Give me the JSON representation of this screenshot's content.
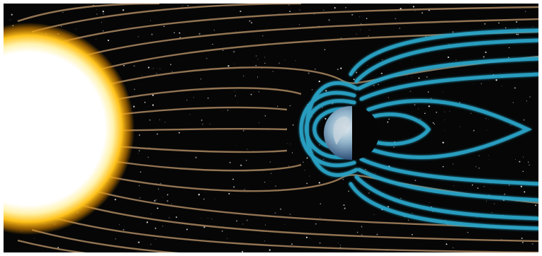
{
  "image": {
    "subject": "sun-earth-magnetosphere",
    "colors": {
      "space": "#060606",
      "sun_core": "#ffffff",
      "sun_glow": "#ffc21a",
      "solar_wind_lines": "#9a7a58",
      "magnetosphere": "#2aa6c9",
      "earth_ocean": "#3b6ea8",
      "earth_land": "#c9d6dd"
    },
    "elements": [
      "sun",
      "solar-wind-field-lines",
      "earth",
      "magnetosphere-field-lines",
      "star-field"
    ]
  }
}
